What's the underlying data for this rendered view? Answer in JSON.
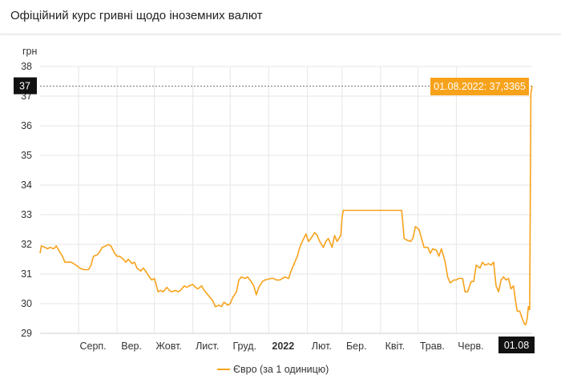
{
  "title": "Офіційний курс гривні щодо іноземних валют",
  "chart_data": {
    "type": "line",
    "ylabel": "грн",
    "ylim": [
      29,
      38
    ],
    "yticks": [
      "29",
      "30",
      "31",
      "32",
      "33",
      "34",
      "35",
      "36",
      "37",
      "38"
    ],
    "x_range": [
      "2021-07-01",
      "2022-08-01"
    ],
    "xticks": [
      {
        "label": "Серп.",
        "date": "2021-08-01"
      },
      {
        "label": "Вер.",
        "date": "2021-09-01"
      },
      {
        "label": "Жовт.",
        "date": "2021-10-01"
      },
      {
        "label": "Лист.",
        "date": "2021-11-01"
      },
      {
        "label": "Груд.",
        "date": "2021-12-01"
      },
      {
        "label": "2022",
        "date": "2022-01-01",
        "bold": true
      },
      {
        "label": "Лют.",
        "date": "2022-02-01"
      },
      {
        "label": "Бер.",
        "date": "2022-03-01"
      },
      {
        "label": "Квіт.",
        "date": "2022-04-01"
      },
      {
        "label": "Трав.",
        "date": "2022-05-01"
      },
      {
        "label": "Черв.",
        "date": "2022-06-01"
      }
    ],
    "crosshair": {
      "x_label": "01.08",
      "y_label": "37",
      "tooltip": "01.08.2022: 37,3365",
      "value": 37.3365
    },
    "legend": {
      "position": "bottom"
    },
    "grid": true,
    "colors": {
      "line": "#f7a21b",
      "marker_bg": "#111111",
      "tooltip_bg": "#f7a21b"
    },
    "series": [
      {
        "name": "Євро (за 1 одиницю)",
        "points": [
          [
            "2021-07-01",
            31.7
          ],
          [
            "2021-07-02",
            31.95
          ],
          [
            "2021-07-05",
            31.9
          ],
          [
            "2021-07-07",
            31.85
          ],
          [
            "2021-07-09",
            31.9
          ],
          [
            "2021-07-12",
            31.85
          ],
          [
            "2021-07-14",
            31.95
          ],
          [
            "2021-07-16",
            31.8
          ],
          [
            "2021-07-19",
            31.6
          ],
          [
            "2021-07-21",
            31.4
          ],
          [
            "2021-07-23",
            31.4
          ],
          [
            "2021-07-26",
            31.4
          ],
          [
            "2021-07-28",
            31.35
          ],
          [
            "2021-07-30",
            31.3
          ],
          [
            "2021-08-02",
            31.2
          ],
          [
            "2021-08-05",
            31.15
          ],
          [
            "2021-08-09",
            31.15
          ],
          [
            "2021-08-11",
            31.3
          ],
          [
            "2021-08-13",
            31.6
          ],
          [
            "2021-08-16",
            31.65
          ],
          [
            "2021-08-18",
            31.75
          ],
          [
            "2021-08-20",
            31.9
          ],
          [
            "2021-08-23",
            31.95
          ],
          [
            "2021-08-25",
            32.0
          ],
          [
            "2021-08-27",
            31.95
          ],
          [
            "2021-08-30",
            31.7
          ],
          [
            "2021-09-01",
            31.6
          ],
          [
            "2021-09-03",
            31.6
          ],
          [
            "2021-09-06",
            31.5
          ],
          [
            "2021-09-08",
            31.4
          ],
          [
            "2021-09-10",
            31.5
          ],
          [
            "2021-09-13",
            31.35
          ],
          [
            "2021-09-15",
            31.4
          ],
          [
            "2021-09-17",
            31.2
          ],
          [
            "2021-09-20",
            31.1
          ],
          [
            "2021-09-22",
            31.2
          ],
          [
            "2021-09-24",
            31.1
          ],
          [
            "2021-09-27",
            30.9
          ],
          [
            "2021-09-29",
            30.8
          ],
          [
            "2021-10-01",
            30.85
          ],
          [
            "2021-10-04",
            30.4
          ],
          [
            "2021-10-06",
            30.45
          ],
          [
            "2021-10-08",
            30.4
          ],
          [
            "2021-10-11",
            30.55
          ],
          [
            "2021-10-13",
            30.45
          ],
          [
            "2021-10-15",
            30.4
          ],
          [
            "2021-10-18",
            30.45
          ],
          [
            "2021-10-20",
            30.4
          ],
          [
            "2021-10-22",
            30.45
          ],
          [
            "2021-10-25",
            30.6
          ],
          [
            "2021-10-27",
            30.55
          ],
          [
            "2021-10-29",
            30.6
          ],
          [
            "2021-11-01",
            30.65
          ],
          [
            "2021-11-03",
            30.55
          ],
          [
            "2021-11-05",
            30.5
          ],
          [
            "2021-11-08",
            30.6
          ],
          [
            "2021-11-10",
            30.45
          ],
          [
            "2021-11-12",
            30.35
          ],
          [
            "2021-11-15",
            30.2
          ],
          [
            "2021-11-17",
            30.1
          ],
          [
            "2021-11-19",
            29.9
          ],
          [
            "2021-11-22",
            29.95
          ],
          [
            "2021-11-24",
            29.9
          ],
          [
            "2021-11-26",
            30.05
          ],
          [
            "2021-11-29",
            29.95
          ],
          [
            "2021-12-01",
            30.0
          ],
          [
            "2021-12-03",
            30.2
          ],
          [
            "2021-12-06",
            30.4
          ],
          [
            "2021-12-08",
            30.8
          ],
          [
            "2021-12-10",
            30.9
          ],
          [
            "2021-12-13",
            30.85
          ],
          [
            "2021-12-15",
            30.9
          ],
          [
            "2021-12-17",
            30.8
          ],
          [
            "2021-12-20",
            30.6
          ],
          [
            "2021-12-22",
            30.3
          ],
          [
            "2021-12-24",
            30.55
          ],
          [
            "2021-12-27",
            30.75
          ],
          [
            "2021-12-29",
            30.8
          ],
          [
            "2022-01-03",
            30.85
          ],
          [
            "2022-01-05",
            30.85
          ],
          [
            "2022-01-07",
            30.8
          ],
          [
            "2022-01-10",
            30.8
          ],
          [
            "2022-01-12",
            30.85
          ],
          [
            "2022-01-14",
            30.9
          ],
          [
            "2022-01-17",
            30.85
          ],
          [
            "2022-01-19",
            31.1
          ],
          [
            "2022-01-21",
            31.3
          ],
          [
            "2022-01-24",
            31.6
          ],
          [
            "2022-01-26",
            31.9
          ],
          [
            "2022-01-28",
            32.1
          ],
          [
            "2022-01-31",
            32.35
          ],
          [
            "2022-02-02",
            32.1
          ],
          [
            "2022-02-04",
            32.2
          ],
          [
            "2022-02-07",
            32.4
          ],
          [
            "2022-02-09",
            32.3
          ],
          [
            "2022-02-11",
            32.1
          ],
          [
            "2022-02-14",
            31.9
          ],
          [
            "2022-02-16",
            32.1
          ],
          [
            "2022-02-18",
            32.2
          ],
          [
            "2022-02-21",
            31.9
          ],
          [
            "2022-02-23",
            32.3
          ],
          [
            "2022-02-25",
            32.1
          ],
          [
            "2022-02-28",
            32.3
          ],
          [
            "2022-03-01",
            32.9
          ],
          [
            "2022-03-02",
            33.15
          ],
          [
            "2022-03-31",
            33.15
          ],
          [
            "2022-04-15",
            33.15
          ],
          [
            "2022-04-18",
            33.15
          ],
          [
            "2022-04-20",
            32.2
          ],
          [
            "2022-04-22",
            32.15
          ],
          [
            "2022-04-25",
            32.1
          ],
          [
            "2022-04-27",
            32.2
          ],
          [
            "2022-04-29",
            32.6
          ],
          [
            "2022-05-02",
            32.5
          ],
          [
            "2022-05-04",
            32.2
          ],
          [
            "2022-05-06",
            31.9
          ],
          [
            "2022-05-09",
            31.9
          ],
          [
            "2022-05-11",
            31.7
          ],
          [
            "2022-05-13",
            31.85
          ],
          [
            "2022-05-16",
            31.8
          ],
          [
            "2022-05-18",
            31.6
          ],
          [
            "2022-05-20",
            31.85
          ],
          [
            "2022-05-23",
            31.4
          ],
          [
            "2022-05-25",
            30.9
          ],
          [
            "2022-05-27",
            30.7
          ],
          [
            "2022-05-30",
            30.8
          ],
          [
            "2022-06-01",
            30.8
          ],
          [
            "2022-06-03",
            30.85
          ],
          [
            "2022-06-06",
            30.85
          ],
          [
            "2022-06-08",
            30.4
          ],
          [
            "2022-06-10",
            30.4
          ],
          [
            "2022-06-13",
            30.75
          ],
          [
            "2022-06-15",
            30.75
          ],
          [
            "2022-06-17",
            31.3
          ],
          [
            "2022-06-20",
            31.2
          ],
          [
            "2022-06-22",
            31.4
          ],
          [
            "2022-06-24",
            31.3
          ],
          [
            "2022-06-27",
            31.35
          ],
          [
            "2022-06-29",
            31.3
          ],
          [
            "2022-07-01",
            31.4
          ],
          [
            "2022-07-03",
            30.6
          ],
          [
            "2022-07-05",
            30.4
          ],
          [
            "2022-07-07",
            30.8
          ],
          [
            "2022-07-09",
            30.9
          ],
          [
            "2022-07-11",
            30.8
          ],
          [
            "2022-07-13",
            30.85
          ],
          [
            "2022-07-15",
            30.5
          ],
          [
            "2022-07-17",
            30.6
          ],
          [
            "2022-07-19",
            30.0
          ],
          [
            "2022-07-20",
            29.75
          ],
          [
            "2022-07-22",
            29.75
          ],
          [
            "2022-07-24",
            29.5
          ],
          [
            "2022-07-26",
            29.3
          ],
          [
            "2022-07-27",
            29.3
          ],
          [
            "2022-07-28",
            29.5
          ],
          [
            "2022-07-29",
            29.9
          ],
          [
            "2022-07-30",
            29.8
          ],
          [
            "2022-07-31",
            37.1
          ],
          [
            "2022-08-01",
            37.3365
          ]
        ]
      }
    ]
  }
}
